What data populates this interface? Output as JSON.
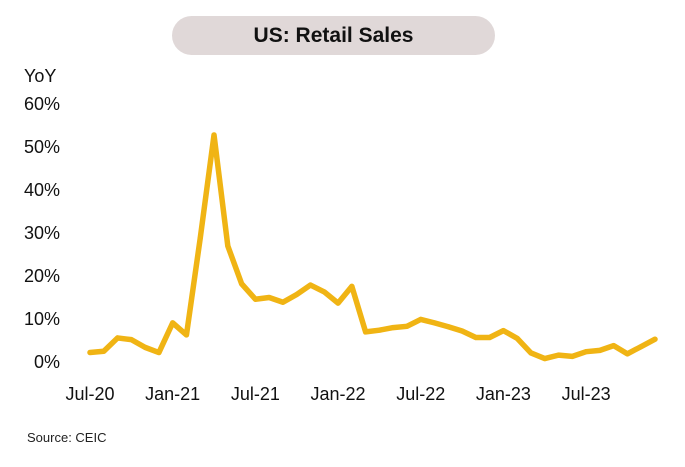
{
  "chart_data": {
    "type": "line",
    "title": "US: Retail Sales",
    "ylabel": "YoY",
    "xlabel": "",
    "ylim": [
      0,
      60
    ],
    "yticks": [
      0,
      10,
      20,
      30,
      40,
      50,
      60
    ],
    "ytick_labels": [
      "0%",
      "10%",
      "20%",
      "30%",
      "40%",
      "50%",
      "60%"
    ],
    "xtick_labels": [
      {
        "label": "Jul-20",
        "x": "2020-07"
      },
      {
        "label": "Jan-21",
        "x": "2021-01"
      },
      {
        "label": "Jul-21",
        "x": "2021-07"
      },
      {
        "label": "Jan-22",
        "x": "2022-01"
      },
      {
        "label": "Jul-22",
        "x": "2022-07"
      },
      {
        "label": "Jan-23",
        "x": "2023-01"
      },
      {
        "label": "Jul-23",
        "x": "2023-07"
      }
    ],
    "grid": false,
    "legend": "none",
    "color": "#F0B414",
    "x": [
      "2020-07",
      "2020-08",
      "2020-09",
      "2020-10",
      "2020-11",
      "2020-12",
      "2021-01",
      "2021-02",
      "2021-03",
      "2021-04",
      "2021-05",
      "2021-06",
      "2021-07",
      "2021-08",
      "2021-09",
      "2021-10",
      "2021-11",
      "2021-12",
      "2022-01",
      "2022-02",
      "2022-03",
      "2022-04",
      "2022-05",
      "2022-06",
      "2022-07",
      "2022-08",
      "2022-09",
      "2022-10",
      "2022-11",
      "2022-12",
      "2023-01",
      "2023-02",
      "2023-03",
      "2023-04",
      "2023-05",
      "2023-06",
      "2023-07",
      "2023-08",
      "2023-09",
      "2023-10",
      "2023-11",
      "2023-12"
    ],
    "series": [
      {
        "values": [
          2.2,
          2.5,
          5.6,
          5.2,
          3.4,
          2.2,
          9.1,
          6.3,
          28.8,
          52.8,
          27.0,
          18.2,
          14.6,
          15.0,
          13.9,
          15.7,
          17.9,
          16.3,
          13.7,
          17.6,
          7.0,
          7.4,
          8.0,
          8.3,
          9.9,
          9.1,
          8.2,
          7.2,
          5.7,
          5.7,
          7.3,
          5.5,
          2.1,
          0.8,
          1.6,
          1.3,
          2.4,
          2.7,
          3.8,
          1.9,
          3.6,
          5.3
        ]
      }
    ]
  },
  "source": "Source: CEIC"
}
